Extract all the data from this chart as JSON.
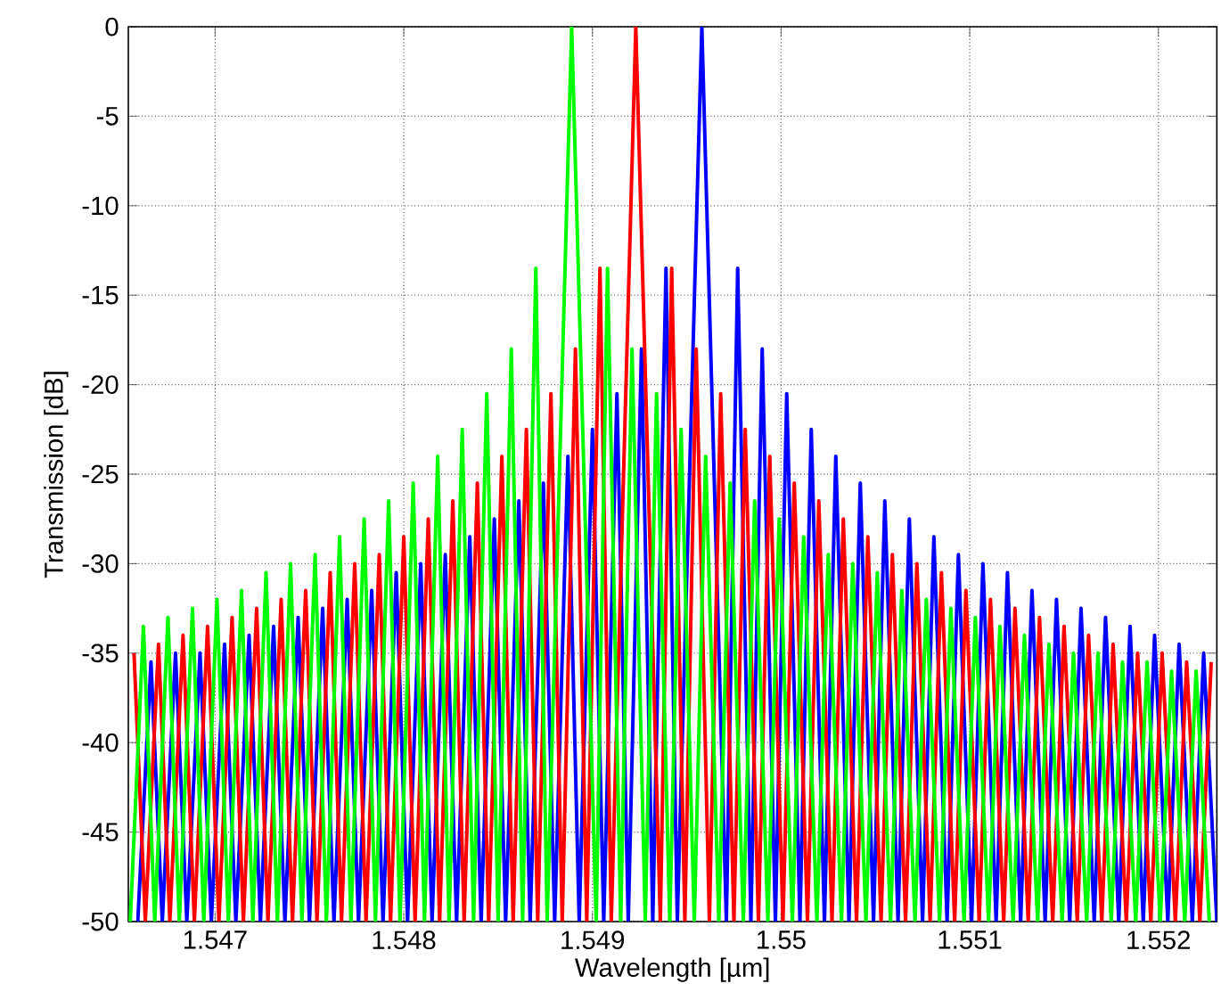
{
  "chart_data": {
    "type": "line",
    "xlabel": "Wavelength [µm]",
    "ylabel": "Transmission [dB]",
    "xlim": [
      1.54654,
      1.55231
    ],
    "ylim": [
      -50,
      0
    ],
    "xticks": [
      1.547,
      1.548,
      1.549,
      1.55,
      1.551,
      1.552
    ],
    "yticks": [
      -50,
      -45,
      -40,
      -35,
      -30,
      -25,
      -20,
      -15,
      -10,
      -5,
      0
    ],
    "grid": true,
    "marker": "none",
    "line_style": "solid",
    "series": [
      {
        "color": "#0000ff",
        "x": [
          1.54659,
          1.54666,
          1.54672,
          1.54679,
          1.54685,
          1.54692,
          1.54698,
          1.54705,
          1.54711,
          1.54718,
          1.54724,
          1.54731,
          1.54737,
          1.54744,
          1.5475,
          1.54757,
          1.54763,
          1.5477,
          1.54776,
          1.54783,
          1.54789,
          1.54796,
          1.54802,
          1.54809,
          1.54815,
          1.54822,
          1.54828,
          1.54835,
          1.54841,
          1.54848,
          1.54854,
          1.54861,
          1.54867,
          1.54874,
          1.5488,
          1.54887,
          1.54893,
          1.549,
          1.54906,
          1.54913,
          1.54919,
          1.54926,
          1.54932,
          1.54939,
          1.54945,
          1.54958,
          1.54971,
          1.54977,
          1.54984,
          1.5499,
          1.54997,
          1.55003,
          1.5501,
          1.55016,
          1.55023,
          1.55029,
          1.55036,
          1.55042,
          1.55049,
          1.55055,
          1.55062,
          1.55068,
          1.55075,
          1.55081,
          1.55088,
          1.55094,
          1.55101,
          1.55107,
          1.55114,
          1.5512,
          1.55127,
          1.55133,
          1.5514,
          1.55146,
          1.55153,
          1.55159,
          1.55166,
          1.55172,
          1.55179,
          1.55185,
          1.55192,
          1.55198,
          1.55205,
          1.55211,
          1.55218,
          1.55224,
          1.55231
        ],
        "values": [
          -50,
          -35.5,
          -50,
          -35,
          -50,
          -35,
          -50,
          -34.5,
          -50,
          -34,
          -50,
          -33.5,
          -50,
          -33,
          -50,
          -32.5,
          -50,
          -32,
          -50,
          -31.5,
          -50,
          -30.5,
          -50,
          -30,
          -50,
          -29.5,
          -50,
          -28.5,
          -50,
          -27.5,
          -50,
          -26.5,
          -50,
          -25.5,
          -50,
          -24,
          -50,
          -22.5,
          -50,
          -20.5,
          -50,
          -18,
          -50,
          -13.5,
          -50,
          0,
          -50,
          -13.5,
          -50,
          -18,
          -50,
          -20.5,
          -50,
          -22.5,
          -50,
          -24,
          -50,
          -25.5,
          -50,
          -26.5,
          -50,
          -27.5,
          -50,
          -28.5,
          -50,
          -29.5,
          -50,
          -30,
          -50,
          -30.5,
          -50,
          -31.5,
          -50,
          -32,
          -50,
          -32.5,
          -50,
          -33,
          -50,
          -33.5,
          -50,
          -34,
          -50,
          -34.5,
          -50,
          -35,
          -50
        ]
      },
      {
        "color": "#ff0000",
        "x": [
          1.54657,
          1.54663,
          1.5467,
          1.54676,
          1.54683,
          1.54689,
          1.54696,
          1.54702,
          1.54709,
          1.54715,
          1.54722,
          1.54728,
          1.54735,
          1.54741,
          1.54748,
          1.54754,
          1.54761,
          1.54767,
          1.54774,
          1.5478,
          1.54787,
          1.54793,
          1.548,
          1.54806,
          1.54813,
          1.54819,
          1.54826,
          1.54832,
          1.54839,
          1.54845,
          1.54852,
          1.54858,
          1.54865,
          1.54871,
          1.54878,
          1.54884,
          1.54891,
          1.54897,
          1.54904,
          1.5491,
          1.54923,
          1.54936,
          1.54942,
          1.54949,
          1.54955,
          1.54962,
          1.54968,
          1.54975,
          1.54981,
          1.54988,
          1.54994,
          1.55001,
          1.55007,
          1.55014,
          1.5502,
          1.55027,
          1.55033,
          1.5504,
          1.55046,
          1.55053,
          1.55059,
          1.55066,
          1.55072,
          1.55079,
          1.55085,
          1.55092,
          1.55098,
          1.55105,
          1.55111,
          1.55118,
          1.55124,
          1.55131,
          1.55137,
          1.55144,
          1.5515,
          1.55157,
          1.55163,
          1.5517,
          1.55176,
          1.55183,
          1.55189,
          1.55196,
          1.55202,
          1.55209,
          1.55215,
          1.55222,
          1.55228
        ],
        "values": [
          -35,
          -50,
          -34.5,
          -50,
          -34,
          -50,
          -33.5,
          -50,
          -33,
          -50,
          -32.5,
          -50,
          -32,
          -50,
          -31.5,
          -50,
          -30.5,
          -50,
          -30,
          -50,
          -29.5,
          -50,
          -28.5,
          -50,
          -27.5,
          -50,
          -26.5,
          -50,
          -25.5,
          -50,
          -24,
          -50,
          -22.5,
          -50,
          -20.5,
          -50,
          -18,
          -50,
          -13.5,
          -50,
          0,
          -50,
          -13.5,
          -50,
          -18,
          -50,
          -20.5,
          -50,
          -22.5,
          -50,
          -24,
          -50,
          -25.5,
          -50,
          -26.5,
          -50,
          -27.5,
          -50,
          -28.5,
          -50,
          -29.5,
          -50,
          -30,
          -50,
          -30.5,
          -50,
          -31.5,
          -50,
          -32,
          -50,
          -32.5,
          -50,
          -33,
          -50,
          -33.5,
          -50,
          -34,
          -50,
          -34.5,
          -50,
          -35,
          -50,
          -35,
          -50,
          -35.5,
          -50,
          -35.5
        ]
      },
      {
        "color": "#00ff00",
        "x": [
          1.54655,
          1.54662,
          1.54668,
          1.54675,
          1.54681,
          1.54688,
          1.54694,
          1.54701,
          1.54707,
          1.54714,
          1.5472,
          1.54727,
          1.54733,
          1.5474,
          1.54746,
          1.54753,
          1.54759,
          1.54766,
          1.54772,
          1.54779,
          1.54785,
          1.54792,
          1.54798,
          1.54805,
          1.54811,
          1.54818,
          1.54824,
          1.54831,
          1.54837,
          1.54844,
          1.5485,
          1.54857,
          1.54863,
          1.5487,
          1.54876,
          1.54889,
          1.54902,
          1.54908,
          1.54915,
          1.54921,
          1.54928,
          1.54934,
          1.54941,
          1.54947,
          1.54954,
          1.5496,
          1.54967,
          1.54973,
          1.5498,
          1.54986,
          1.54993,
          1.54999,
          1.55006,
          1.55012,
          1.55019,
          1.55025,
          1.55032,
          1.55038,
          1.55045,
          1.55051,
          1.55058,
          1.55064,
          1.55071,
          1.55077,
          1.55084,
          1.5509,
          1.55097,
          1.55103,
          1.5511,
          1.55116,
          1.55123,
          1.55129,
          1.55136,
          1.55142,
          1.55149,
          1.55155,
          1.55162,
          1.55168,
          1.55175,
          1.55181,
          1.55188,
          1.55194,
          1.55201,
          1.55207,
          1.55214,
          1.5522,
          1.55227
        ],
        "values": [
          -50,
          -33.5,
          -50,
          -33,
          -50,
          -32.5,
          -50,
          -32,
          -50,
          -31.5,
          -50,
          -30.5,
          -50,
          -30,
          -50,
          -29.5,
          -50,
          -28.5,
          -50,
          -27.5,
          -50,
          -26.5,
          -50,
          -25.5,
          -50,
          -24,
          -50,
          -22.5,
          -50,
          -20.5,
          -50,
          -18,
          -50,
          -13.5,
          -50,
          0,
          -50,
          -13.5,
          -50,
          -18,
          -50,
          -20.5,
          -50,
          -22.5,
          -50,
          -24,
          -50,
          -25.5,
          -50,
          -26.5,
          -50,
          -27.5,
          -50,
          -28.5,
          -50,
          -29.5,
          -50,
          -30,
          -50,
          -30.5,
          -50,
          -31.5,
          -50,
          -32,
          -50,
          -32.5,
          -50,
          -33,
          -50,
          -33.5,
          -50,
          -34,
          -50,
          -34.5,
          -50,
          -35,
          -50,
          -35,
          -50,
          -35.5,
          -50,
          -35.5,
          -50,
          -36,
          -50,
          -36,
          -50
        ]
      }
    ]
  }
}
